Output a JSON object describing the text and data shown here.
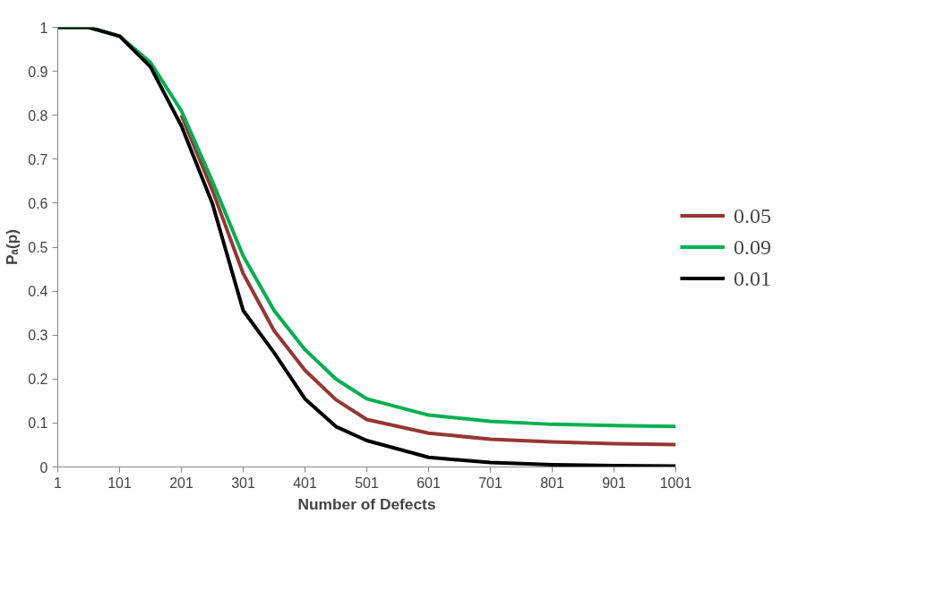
{
  "chart_data": {
    "type": "line",
    "xlabel": "Number of Defects",
    "ylabel": "Pₐ(p)",
    "x": [
      1,
      51,
      101,
      151,
      201,
      251,
      301,
      351,
      401,
      451,
      501,
      601,
      701,
      801,
      901,
      1001
    ],
    "series": [
      {
        "name": "0.05",
        "color": "#953735",
        "values": [
          null,
          null,
          null,
          null,
          0.8,
          0.63,
          0.44,
          0.31,
          0.22,
          0.153,
          0.108,
          0.077,
          0.063,
          0.057,
          0.053,
          0.051
        ]
      },
      {
        "name": "0.09",
        "color": "#00b050",
        "values": [
          1,
          1,
          0.98,
          0.92,
          0.81,
          0.65,
          0.48,
          0.356,
          0.267,
          0.2,
          0.155,
          0.118,
          0.104,
          0.097,
          0.094,
          0.092
        ]
      },
      {
        "name": "0.01",
        "color": "#000000",
        "values": [
          1,
          1,
          0.98,
          0.91,
          0.776,
          0.6,
          0.356,
          0.26,
          0.155,
          0.092,
          0.06,
          0.022,
          0.01,
          0.005,
          0.003,
          0.002
        ]
      }
    ],
    "xlim": [
      1,
      1001
    ],
    "xticks": [
      1,
      101,
      201,
      301,
      401,
      501,
      601,
      701,
      801,
      901,
      1001
    ],
    "ylim": [
      0,
      1
    ],
    "yticks": [
      0,
      0.1,
      0.2,
      0.3,
      0.4,
      0.5,
      0.6,
      0.7,
      0.8,
      0.9,
      1
    ],
    "grid": false,
    "legend": "right",
    "marker": "none",
    "line_style": "solid"
  }
}
